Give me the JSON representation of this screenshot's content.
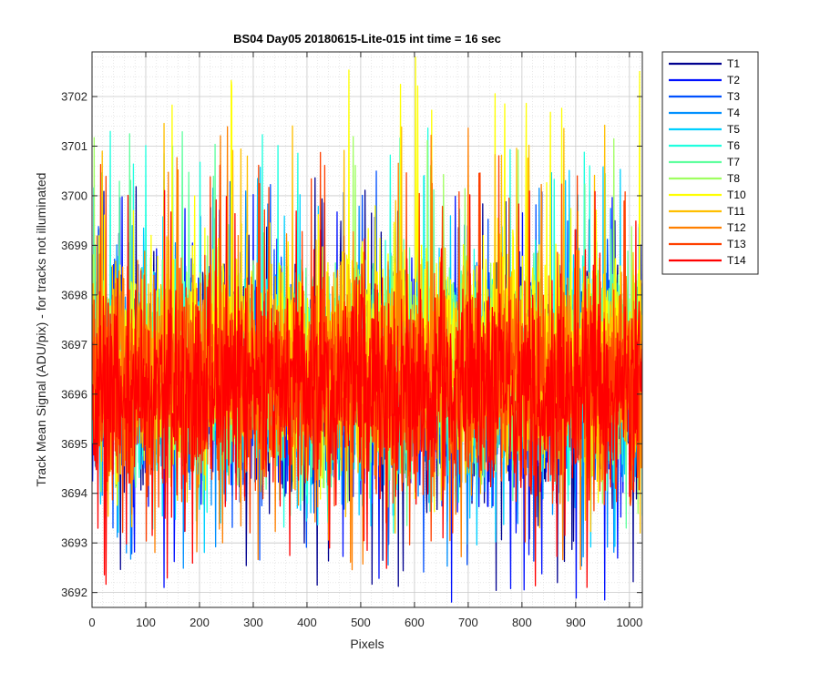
{
  "chart_data": {
    "type": "line",
    "title": "BS04 Day05 20180615-Lite-015 int time = 16 sec",
    "xlabel": "Pixels",
    "ylabel": "Track Mean Signal (ADU/pix) - for tracks not illuminated",
    "xlim": [
      0,
      1024
    ],
    "ylim": [
      3691.7,
      3702.9
    ],
    "xticks": [
      0,
      100,
      200,
      300,
      400,
      500,
      600,
      700,
      800,
      900,
      1000
    ],
    "yticks": [
      3692,
      3693,
      3694,
      3695,
      3696,
      3697,
      3698,
      3699,
      3700,
      3701,
      3702
    ],
    "grid": "on (major + minor)",
    "legend_position": "outside top-right",
    "series": [
      {
        "name": "T1",
        "color": "#00008f",
        "mean": 3696.3,
        "min": 3692.0,
        "max": 3700.4
      },
      {
        "name": "T2",
        "color": "#0010ff",
        "mean": 3696.2,
        "min": 3691.8,
        "max": 3700.3
      },
      {
        "name": "T3",
        "color": "#0050ff",
        "mean": 3696.3,
        "min": 3692.3,
        "max": 3700.5
      },
      {
        "name": "T4",
        "color": "#0090ff",
        "mean": 3696.2,
        "min": 3692.4,
        "max": 3700.2
      },
      {
        "name": "T5",
        "color": "#00d0ff",
        "mean": 3696.3,
        "min": 3692.8,
        "max": 3700.6
      },
      {
        "name": "T6",
        "color": "#20ffdf",
        "mean": 3696.5,
        "min": 3693.2,
        "max": 3701.4
      },
      {
        "name": "T7",
        "color": "#60ff9f",
        "mean": 3696.6,
        "min": 3693.3,
        "max": 3701.3
      },
      {
        "name": "T8",
        "color": "#9fff60",
        "mean": 3696.6,
        "min": 3693.5,
        "max": 3701.2
      },
      {
        "name": "T10",
        "color": "#ffff00",
        "mean": 3696.9,
        "min": 3693.6,
        "max": 3702.8
      },
      {
        "name": "T11",
        "color": "#ffbf00",
        "mean": 3696.5,
        "min": 3693.2,
        "max": 3701.5
      },
      {
        "name": "T12",
        "color": "#ff8000",
        "mean": 3696.3,
        "min": 3692.4,
        "max": 3701.4
      },
      {
        "name": "T13",
        "color": "#ff4000",
        "mean": 3696.2,
        "min": 3692.8,
        "max": 3700.9
      },
      {
        "name": "T14",
        "color": "#ff0000",
        "mean": 3696.1,
        "min": 3692.1,
        "max": 3700.2
      }
    ]
  }
}
